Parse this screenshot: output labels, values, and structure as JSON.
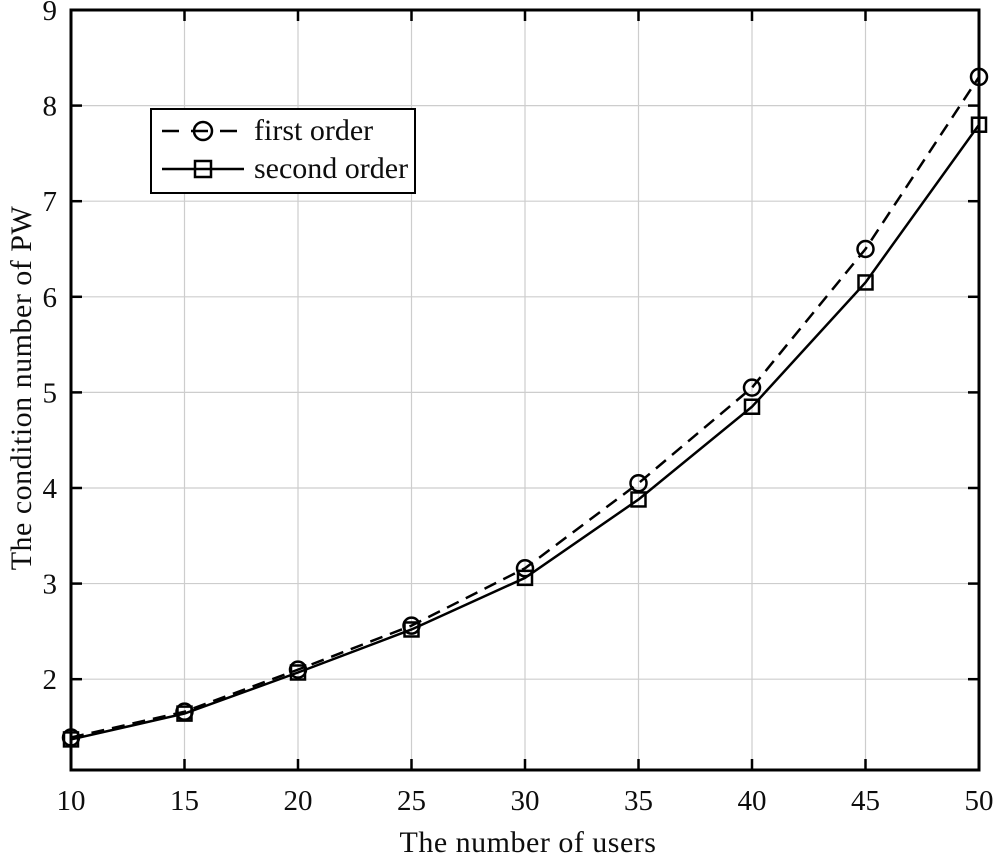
{
  "figure": {
    "background": "#ffffff"
  },
  "chart_data": {
    "type": "line",
    "x": [
      10,
      15,
      20,
      25,
      30,
      35,
      40,
      45,
      50
    ],
    "series": [
      {
        "name": "first order",
        "values": [
          1.39,
          1.66,
          2.1,
          2.56,
          3.16,
          4.05,
          5.05,
          6.5,
          8.3
        ],
        "linestyle": "dashed",
        "marker": "circle",
        "color": "#000000"
      },
      {
        "name": "second order",
        "values": [
          1.37,
          1.64,
          2.07,
          2.52,
          3.06,
          3.88,
          4.85,
          6.15,
          7.8
        ],
        "linestyle": "solid",
        "marker": "square",
        "color": "#000000"
      }
    ],
    "title": "",
    "xlabel": "The number of users",
    "ylabel": "The condition number of PW",
    "xlim": [
      10,
      50
    ],
    "ylim": [
      1.05,
      9
    ],
    "xticks": [
      10,
      15,
      20,
      25,
      30,
      35,
      40,
      45,
      50
    ],
    "yticks": [
      2,
      3,
      4,
      5,
      6,
      7,
      8,
      9
    ],
    "grid": true,
    "grid_color": "#cdcdcd",
    "axis_color": "#000000",
    "tick_label_color": "#0d0d0d",
    "legend_position": "upper-left"
  }
}
